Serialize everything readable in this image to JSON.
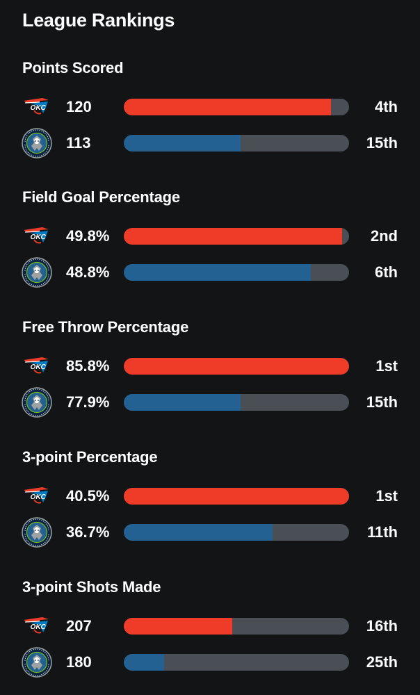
{
  "title": "League Rankings",
  "colors": {
    "okc_bar": "#ef3c28",
    "min_bar": "#236192",
    "track": "#4a4f55",
    "background": "#121416"
  },
  "teams": {
    "okc": {
      "logo_icon": "okc-thunder-logo-icon"
    },
    "min": {
      "logo_icon": "minnesota-timberwolves-logo-icon"
    }
  },
  "categories": [
    {
      "title": "Points Scored",
      "okc": {
        "value": "120",
        "rank": "4th",
        "fill": 0.92
      },
      "min": {
        "value": "113",
        "rank": "15th",
        "fill": 0.52
      }
    },
    {
      "title": "Field Goal Percentage",
      "okc": {
        "value": "49.8%",
        "rank": "2nd",
        "fill": 0.97
      },
      "min": {
        "value": "48.8%",
        "rank": "6th",
        "fill": 0.83
      }
    },
    {
      "title": "Free Throw Percentage",
      "okc": {
        "value": "85.8%",
        "rank": "1st",
        "fill": 1.0
      },
      "min": {
        "value": "77.9%",
        "rank": "15th",
        "fill": 0.52
      }
    },
    {
      "title": "3-point Percentage",
      "okc": {
        "value": "40.5%",
        "rank": "1st",
        "fill": 1.0
      },
      "min": {
        "value": "36.7%",
        "rank": "11th",
        "fill": 0.66
      }
    },
    {
      "title": "3-point Shots Made",
      "okc": {
        "value": "207",
        "rank": "16th",
        "fill": 0.48
      },
      "min": {
        "value": "180",
        "rank": "25th",
        "fill": 0.18
      }
    }
  ]
}
